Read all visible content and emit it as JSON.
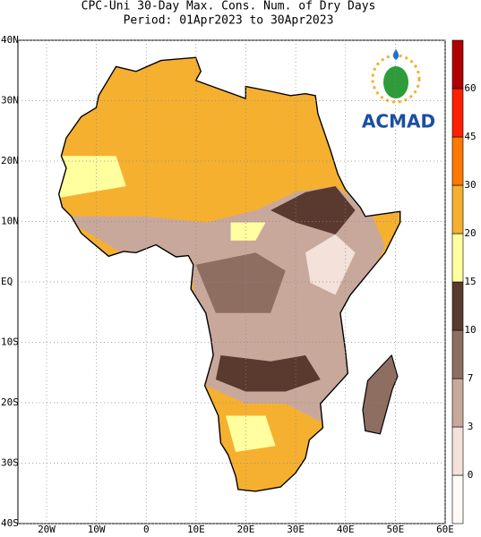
{
  "header": {
    "title": "CPC-Uni 30-Day Max. Cons. Num. of Dry Days",
    "subtitle": "Period: 01Apr2023 to 30Apr2023"
  },
  "map": {
    "lat_labels": [
      "40N",
      "30N",
      "20N",
      "10N",
      "EQ",
      "10S",
      "20S",
      "30S",
      "40S"
    ],
    "lon_labels": [
      "20W",
      "10W",
      "0",
      "10E",
      "20E",
      "30E",
      "40E",
      "50E",
      "60E"
    ]
  },
  "colorbar": {
    "ticks": [
      0,
      3,
      7,
      10,
      15,
      20,
      30,
      45,
      60
    ],
    "colors": [
      "#fffaf5",
      "#f3e1da",
      "#c9a89c",
      "#8f6e62",
      "#5a3a2e",
      "#ffffa0",
      "#f5b030",
      "#ff7800",
      "#ff2000",
      "#b00000"
    ]
  },
  "logo": {
    "text": "ACMAD"
  }
}
